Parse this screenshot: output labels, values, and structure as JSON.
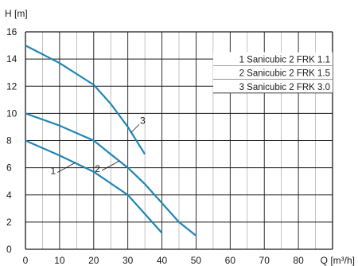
{
  "chart_data": {
    "type": "line",
    "ylabel": "H [m]",
    "xlabel": "Q [m³/h]",
    "xlim": [
      0,
      90
    ],
    "ylim": [
      0,
      16
    ],
    "x_ticks": [
      0,
      10,
      20,
      30,
      40,
      50,
      60,
      70,
      80,
      90
    ],
    "y_ticks": [
      0,
      2,
      4,
      6,
      8,
      10,
      12,
      14,
      16
    ],
    "x_tick_labels": [
      "0",
      "10",
      "20",
      "30",
      "40",
      "50",
      "60",
      "70",
      "80"
    ],
    "y_tick_labels": [
      "0",
      "2",
      "4",
      "6",
      "8",
      "10",
      "12",
      "14",
      "16"
    ],
    "x_minor_step": 5,
    "grid": true,
    "line_color": "#1e87b4",
    "legend": [
      "1 Sanicubic 2 FRK 1.1",
      "2 Sanicubic 2 FRK 1.5",
      "3 Sanicubic 2 FRK 3.0"
    ],
    "legend_position": "top-right",
    "series": [
      {
        "label": "1",
        "x": [
          0,
          10,
          20,
          30,
          35,
          40
        ],
        "y": [
          8.0,
          6.9,
          5.7,
          4.0,
          2.6,
          1.2
        ]
      },
      {
        "label": "2",
        "x": [
          0,
          10,
          20,
          25,
          30,
          35,
          40,
          45,
          50
        ],
        "y": [
          10.0,
          9.1,
          8.0,
          7.0,
          6.0,
          4.8,
          3.4,
          2.0,
          1.0
        ]
      },
      {
        "label": "3",
        "x": [
          0,
          10,
          20,
          25,
          30,
          32.5,
          35
        ],
        "y": [
          15.0,
          13.7,
          12.1,
          10.7,
          9.0,
          8.0,
          7.0
        ]
      }
    ]
  }
}
